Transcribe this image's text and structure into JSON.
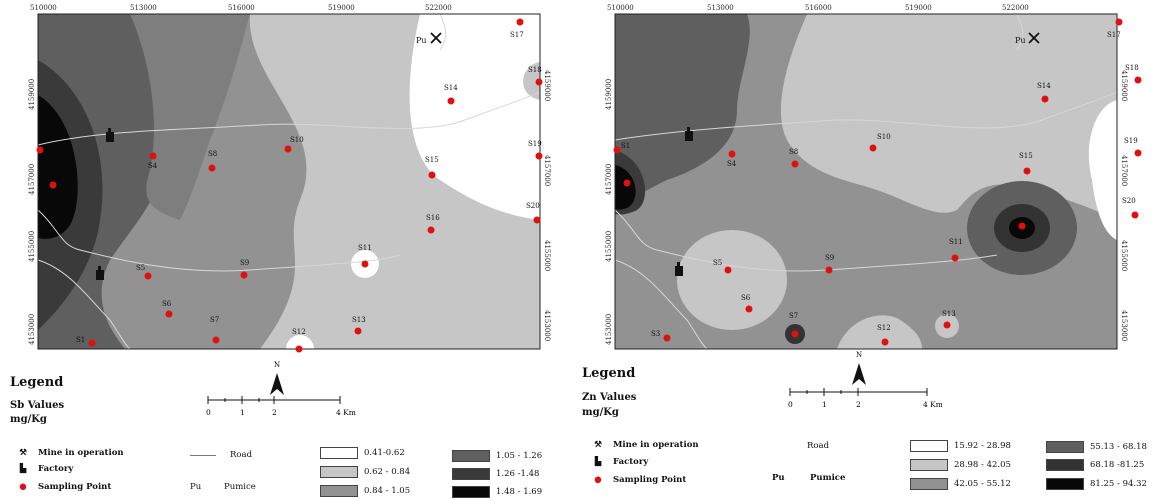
{
  "panels": [
    {
      "id": "sb",
      "top_ticks": [
        "510000",
        "513000",
        "516000",
        "519000",
        "522000"
      ],
      "left_ticks": [
        "4159000",
        "4157000",
        "4155000",
        "4153000"
      ],
      "right_ticks": [
        "4159000",
        "4157000",
        "4155000",
        "4153000"
      ],
      "points": [
        "S1",
        "S2",
        "S3",
        "S4",
        "S5",
        "S6",
        "S7",
        "S8",
        "S9",
        "S10",
        "S11",
        "S12",
        "S13",
        "S14",
        "S15",
        "S16",
        "S17",
        "S18",
        "S19",
        "S20"
      ],
      "map_labels": {
        "pumice": "Pu"
      },
      "legend": {
        "title": "Legend",
        "subtitle": "Sb Values",
        "unit": "mg/Kg",
        "scale_ticks": [
          "0",
          "1",
          "2",
          "4 Km"
        ],
        "north": "N",
        "mine": "Mine in operation",
        "factory": "Factory",
        "sampling": "Sampling Point",
        "road": "Road",
        "pu_symbol": "Pu",
        "pumice": "Pumice",
        "classes": [
          {
            "label": "0.41-0.62",
            "color": "#ffffff"
          },
          {
            "label": "0.62 - 0.84",
            "color": "#c6c6c6"
          },
          {
            "label": "0.84 - 1.05",
            "color": "#929292"
          },
          {
            "label": "1.05 - 1.26",
            "color": "#5f5f5f"
          },
          {
            "label": "1.26 -1.48",
            "color": "#3a3a3a"
          },
          {
            "label": "1.48 - 1.69",
            "color": "#080808"
          }
        ]
      }
    },
    {
      "id": "zn",
      "top_ticks": [
        "510000",
        "513000",
        "516000",
        "519000",
        "522000"
      ],
      "left_ticks": [
        "4159000",
        "4157000",
        "4155000",
        "4153000"
      ],
      "right_ticks": [
        "4159000",
        "4157000",
        "4155000",
        "4153000"
      ],
      "points": [
        "S1",
        "S2",
        "S3",
        "S4",
        "S5",
        "S6",
        "S7",
        "S8",
        "S9",
        "S10",
        "S11",
        "S12",
        "S13",
        "S14",
        "S15",
        "S16",
        "S17",
        "S18",
        "S19",
        "S20"
      ],
      "map_labels": {
        "pumice": "Pu"
      },
      "legend": {
        "title": "Legend",
        "subtitle": "Zn Values",
        "unit": "mg/Kg",
        "scale_ticks": [
          "0",
          "1",
          "2",
          "4 Km"
        ],
        "north": "N",
        "mine": "Mine in operation",
        "factory": "Factory",
        "sampling": "Sampling Point",
        "road": "Road",
        "pu_symbol": "Pu",
        "pumice": "Pumice",
        "classes": [
          {
            "label": "15.92 - 28.98",
            "color": "#ffffff"
          },
          {
            "label": "28.98 - 42.05",
            "color": "#c6c6c6"
          },
          {
            "label": "42.05 - 55.12",
            "color": "#929292"
          },
          {
            "label": "55.13 - 68.18",
            "color": "#5f5f5f"
          },
          {
            "label": "68.18 -81.25",
            "color": "#333333"
          },
          {
            "label": "81.25 - 94.32",
            "color": "#080808"
          }
        ]
      }
    }
  ]
}
